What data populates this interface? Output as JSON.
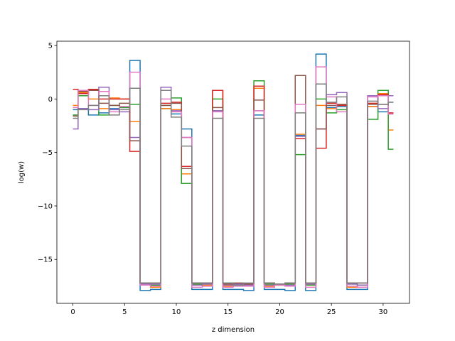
{
  "chart_data": {
    "type": "line",
    "drawstyle": "steps-mid",
    "xlabel": "z dimension",
    "ylabel": "log(w)",
    "xlim": [
      -1.55,
      32.55
    ],
    "ylim": [
      -19.1,
      5.4
    ],
    "xticks": [
      0,
      5,
      10,
      15,
      20,
      25,
      30
    ],
    "yticks": [
      5,
      0,
      -5,
      -10,
      -15
    ],
    "grid": false,
    "x": [
      0,
      1,
      2,
      3,
      4,
      5,
      6,
      7,
      8,
      9,
      10,
      11,
      12,
      13,
      14,
      15,
      16,
      17,
      18,
      19,
      20,
      21,
      22,
      23,
      24,
      25,
      26,
      27,
      28,
      29,
      30,
      31
    ],
    "series": [
      {
        "color": "#1f77b4",
        "values": [
          -1.0,
          -0.9,
          -1.5,
          -1.3,
          -0.9,
          -0.8,
          3.6,
          -17.9,
          -17.8,
          -0.9,
          -1.4,
          -2.8,
          -17.8,
          -17.8,
          -1.1,
          -17.8,
          -17.8,
          -17.9,
          -1.5,
          -17.8,
          -17.8,
          -17.9,
          -3.4,
          -17.9,
          4.2,
          -0.8,
          -0.7,
          -17.8,
          -17.8,
          -0.7,
          -1.2,
          -0.3
        ]
      },
      {
        "color": "#ff7f0e",
        "values": [
          -0.6,
          0.6,
          0.0,
          -0.9,
          0.1,
          0.0,
          -2.1,
          -17.3,
          -17.6,
          -0.9,
          -1.0,
          -7.0,
          -17.4,
          -17.4,
          0.8,
          -17.5,
          -17.3,
          -17.4,
          1.0,
          -17.5,
          -17.4,
          -17.3,
          -3.3,
          -17.4,
          -0.6,
          -0.9,
          -0.5,
          -17.6,
          -17.4,
          -0.7,
          0.5,
          -2.9
        ]
      },
      {
        "color": "#2ca02c",
        "values": [
          -1.5,
          0.3,
          0.8,
          -1.5,
          -0.6,
          -0.8,
          -0.5,
          -17.2,
          -17.4,
          -0.6,
          0.1,
          -7.9,
          -17.3,
          -17.3,
          0.0,
          -17.2,
          -17.4,
          -17.3,
          1.7,
          -17.3,
          -17.4,
          -17.3,
          -5.2,
          -17.4,
          0.0,
          -1.3,
          -1.0,
          -17.3,
          -17.4,
          -1.9,
          0.8,
          -4.7
        ]
      },
      {
        "color": "#d62728",
        "values": [
          0.9,
          0.5,
          0.9,
          0.0,
          0.0,
          0.0,
          -4.9,
          -17.2,
          -17.2,
          -0.4,
          -0.3,
          -6.3,
          -17.2,
          -17.2,
          0.8,
          -17.3,
          -17.3,
          -17.3,
          1.2,
          -17.2,
          -17.3,
          -17.2,
          -3.7,
          -17.2,
          -4.6,
          -0.4,
          -0.6,
          -17.2,
          -17.2,
          -0.4,
          0.4,
          -1.3
        ]
      },
      {
        "color": "#9467bd",
        "values": [
          -2.8,
          -0.9,
          -1.0,
          1.1,
          -1.0,
          -1.2,
          -3.6,
          -17.3,
          -17.3,
          1.1,
          -1.1,
          -3.6,
          -17.4,
          -17.3,
          -1.1,
          -17.4,
          -17.3,
          -17.4,
          -1.1,
          -17.4,
          -17.3,
          -17.4,
          -3.5,
          -17.3,
          -2.8,
          0.4,
          0.6,
          -17.3,
          -17.4,
          0.3,
          -0.9,
          0.3
        ]
      },
      {
        "color": "#8c564b",
        "values": [
          -1.6,
          0.7,
          0.8,
          -0.4,
          -0.6,
          -0.4,
          -3.9,
          -17.2,
          -17.2,
          -0.6,
          -0.4,
          -6.5,
          -17.2,
          -17.2,
          -0.8,
          -17.3,
          -17.2,
          -17.3,
          -0.1,
          -17.2,
          -17.3,
          -17.2,
          2.2,
          -17.2,
          -2.8,
          -0.6,
          -0.5,
          -17.2,
          -17.2,
          -0.5,
          -0.5,
          -1.4
        ]
      },
      {
        "color": "#e377c2",
        "values": [
          -0.8,
          0.8,
          -0.6,
          0.7,
          -1.2,
          -0.7,
          2.5,
          -17.4,
          -17.5,
          0.0,
          -1.2,
          -3.6,
          -17.6,
          -17.5,
          -1.2,
          -17.6,
          -17.5,
          -17.5,
          -1.1,
          -17.6,
          -17.4,
          -17.5,
          -0.5,
          -17.6,
          3.0,
          0.2,
          -1.2,
          -17.5,
          -17.6,
          0.2,
          0.3,
          -1.4
        ]
      },
      {
        "color": "#7f7f7f",
        "values": [
          -1.8,
          -1.0,
          -0.6,
          0.3,
          -1.5,
          -1.0,
          1.0,
          -17.2,
          -17.2,
          0.8,
          -1.7,
          -4.4,
          -17.2,
          -17.2,
          -1.8,
          -17.2,
          -17.4,
          -17.2,
          -1.8,
          -17.2,
          -17.3,
          -17.2,
          -1.3,
          -17.2,
          1.4,
          -0.3,
          0.2,
          -17.2,
          -17.2,
          -0.2,
          -0.5,
          -0.3
        ]
      }
    ]
  }
}
